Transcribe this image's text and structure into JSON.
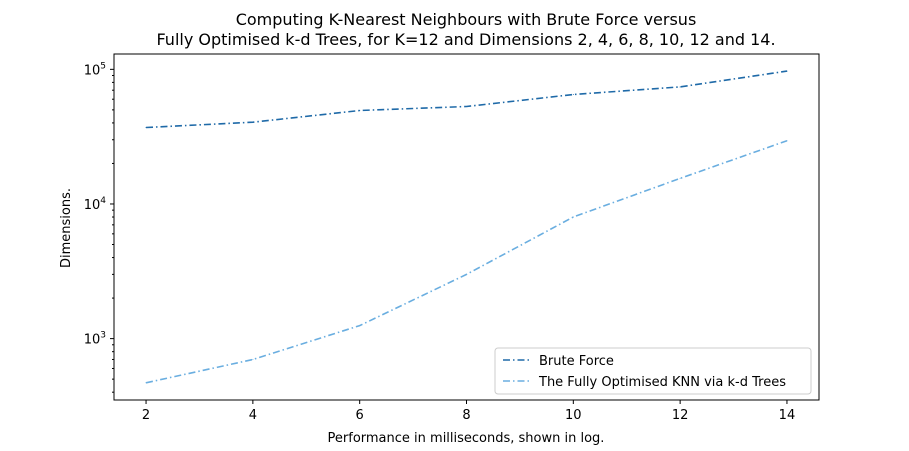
{
  "chart_data": {
    "type": "line",
    "title": "Computing K-Nearest Neighbours with Brute Force versus",
    "subtitle": "Fully Optimised k-d Trees, for K=12 and Dimensions 2, 4, 6, 8, 10, 12 and 14.",
    "xlabel": "Performance in milliseconds, shown in log.",
    "ylabel": "Dimensions.",
    "x": [
      2,
      4,
      6,
      8,
      10,
      12,
      14
    ],
    "xlim": [
      1.4,
      14.6
    ],
    "ylim": [
      350,
      130000
    ],
    "yscale": "log",
    "xticks": [
      "2",
      "4",
      "6",
      "8",
      "10",
      "12",
      "14"
    ],
    "yticks": [
      {
        "value": 1000,
        "base": "10",
        "exp": "3"
      },
      {
        "value": 10000,
        "base": "10",
        "exp": "4"
      },
      {
        "value": 100000,
        "base": "10",
        "exp": "5"
      }
    ],
    "grid": false,
    "legend_position": "lower-right",
    "series": [
      {
        "name": "Brute Force",
        "color": "#1f6aa8",
        "values": [
          37000,
          40500,
          49500,
          53000,
          65000,
          74000,
          97000
        ]
      },
      {
        "name": "The Fully Optimised KNN via k-d Trees",
        "color": "#6aaee0",
        "values": [
          470,
          700,
          1250,
          3000,
          8000,
          15500,
          29500
        ]
      }
    ]
  }
}
